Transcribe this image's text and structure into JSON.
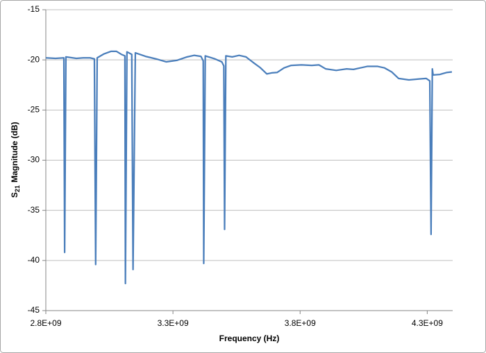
{
  "chart_data": {
    "type": "line",
    "xlabel": "Frequency (Hz)",
    "ylabel": [
      "S",
      "21",
      "Magnitude (dB)"
    ],
    "x": [
      2800000000,
      2838000000,
      2871000000,
      2874000000,
      2879000000,
      2920000000,
      2947000000,
      2974000000,
      2991000000,
      2996000000,
      3002000000,
      3029000000,
      3056000000,
      3078000000,
      3097000000,
      3111000000,
      3113000000,
      3119000000,
      3138000000,
      3143000000,
      3152000000,
      3192000000,
      3233000000,
      3274000000,
      3315000000,
      3356000000,
      3383000000,
      3410000000,
      3419000000,
      3421000000,
      3427000000,
      3465000000,
      3492000000,
      3500000000,
      3503000000,
      3508000000,
      3533000000,
      3560000000,
      3587000000,
      3615000000,
      3642000000,
      3669000000,
      3688000000,
      3710000000,
      3737000000,
      3765000000,
      3805000000,
      3846000000,
      3874000000,
      3901000000,
      3942000000,
      3983000000,
      4010000000,
      4037000000,
      4064000000,
      4105000000,
      4132000000,
      4160000000,
      4187000000,
      4228000000,
      4269000000,
      4296000000,
      4310000000,
      4315000000,
      4320000000,
      4323000000,
      4350000000,
      4378000000,
      4397000000
    ],
    "series": [
      {
        "name": "S21",
        "color": "#4a7ebb",
        "values": [
          -19.8,
          -19.85,
          -19.8,
          -39.2,
          -19.7,
          -19.85,
          -19.8,
          -19.8,
          -19.9,
          -40.4,
          -19.8,
          -19.4,
          -19.15,
          -19.15,
          -19.45,
          -19.6,
          -42.3,
          -19.2,
          -19.45,
          -40.9,
          -19.3,
          -19.65,
          -19.9,
          -20.2,
          -20.05,
          -19.7,
          -19.55,
          -19.65,
          -20.1,
          -40.3,
          -19.6,
          -19.9,
          -20.2,
          -20.6,
          -36.9,
          -19.6,
          -19.7,
          -19.55,
          -19.7,
          -20.25,
          -20.75,
          -21.4,
          -21.3,
          -21.25,
          -20.8,
          -20.55,
          -20.5,
          -20.55,
          -20.5,
          -20.9,
          -21.05,
          -20.9,
          -20.95,
          -20.8,
          -20.65,
          -20.65,
          -20.8,
          -21.2,
          -21.85,
          -22.0,
          -21.9,
          -21.85,
          -22.1,
          -37.4,
          -20.9,
          -21.5,
          -21.45,
          -21.25,
          -21.2
        ]
      }
    ],
    "xlim": [
      2800000000,
      4400000000
    ],
    "xticks": [
      {
        "value": 2800000000,
        "label": "2.8E+09"
      },
      {
        "value": 3300000000,
        "label": "3.3E+09"
      },
      {
        "value": 3800000000,
        "label": "3.8E+09"
      },
      {
        "value": 4300000000,
        "label": "4.3E+09"
      }
    ],
    "ylim": [
      -45,
      -15
    ],
    "yticks": [
      -45,
      -40,
      -35,
      -30,
      -25,
      -20,
      -15
    ],
    "grid": true
  }
}
